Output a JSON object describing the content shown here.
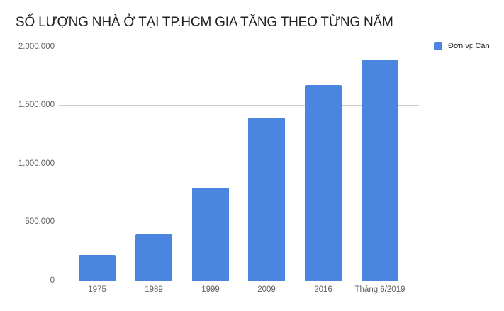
{
  "title": "SỐ LƯỢNG NHÀ Ở TẠI TP.HCM GIA TĂNG THEO TỪNG NĂM",
  "legend": {
    "label": "Đơn vị: Căn",
    "color": "#4a86e0"
  },
  "y_axis": {
    "ticks": [
      "2.000.000",
      "1.500.000",
      "1.000.000",
      "500.000",
      "0"
    ]
  },
  "x_axis": {
    "ticks": [
      "1975",
      "1989",
      "1999",
      "2009",
      "2016",
      "Tháng 6/2019"
    ]
  },
  "chart_data": {
    "type": "bar",
    "title": "SỐ LƯỢNG NHÀ Ở TẠI TP.HCM GIA TĂNG THEO TỪNG NĂM",
    "categories": [
      "1975",
      "1989",
      "1999",
      "2009",
      "2016",
      "Tháng 6/2019"
    ],
    "series": [
      {
        "name": "Đơn vị: Căn",
        "values": [
          220000,
          395000,
          795000,
          1395000,
          1673000,
          1885000
        ],
        "color": "#4a86e0"
      }
    ],
    "xlabel": "",
    "ylabel": "",
    "ylim": [
      0,
      2000000
    ],
    "yticks": [
      0,
      500000,
      1000000,
      1500000,
      2000000
    ],
    "grid": true,
    "legend_position": "right"
  }
}
